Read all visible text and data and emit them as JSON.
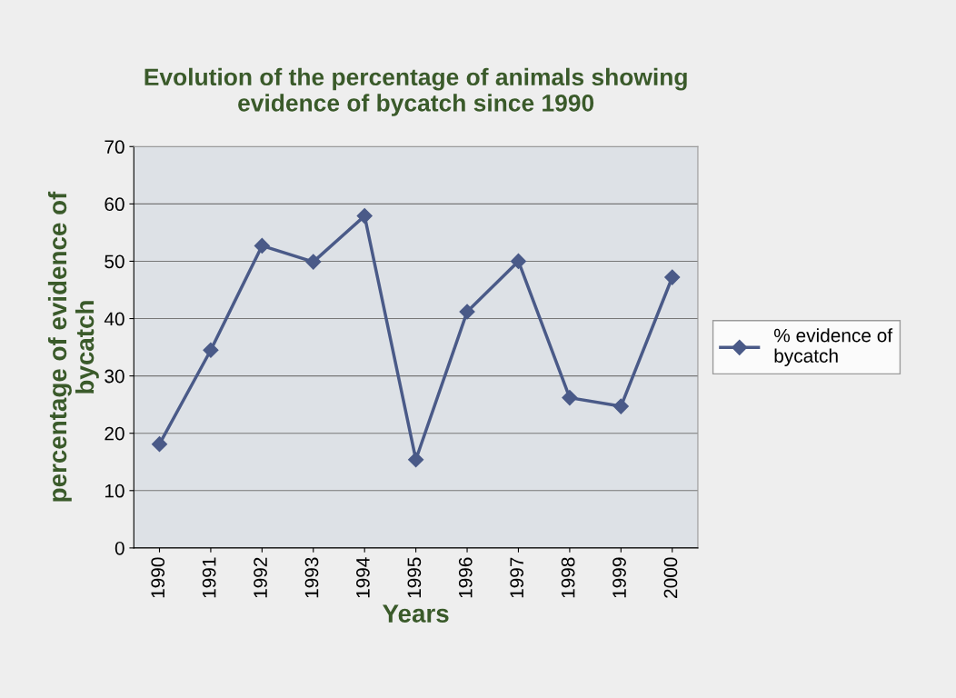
{
  "chart_data": {
    "type": "line",
    "title": "Evolution of the percentage of animals showing\nevidence of bycatch since 1990",
    "xlabel": "Years",
    "ylabel": "percentage of evidence of\nbycatch",
    "categories": [
      "1990",
      "1991",
      "1992",
      "1993",
      "1994",
      "1995",
      "1996",
      "1997",
      "1998",
      "1999",
      "2000"
    ],
    "series": [
      {
        "name": "% evidence of\nbycatch",
        "color": "#4a5a88",
        "values": [
          18.1,
          34.5,
          52.7,
          49.9,
          57.9,
          15.4,
          41.2,
          50,
          26.2,
          24.7,
          47.2
        ]
      }
    ],
    "ylim": [
      0,
      70
    ],
    "yticks": [
      0,
      10,
      20,
      30,
      40,
      50,
      60,
      70
    ],
    "grid": "y",
    "legend": "right",
    "marker": "diamond",
    "line_style": "solid"
  }
}
